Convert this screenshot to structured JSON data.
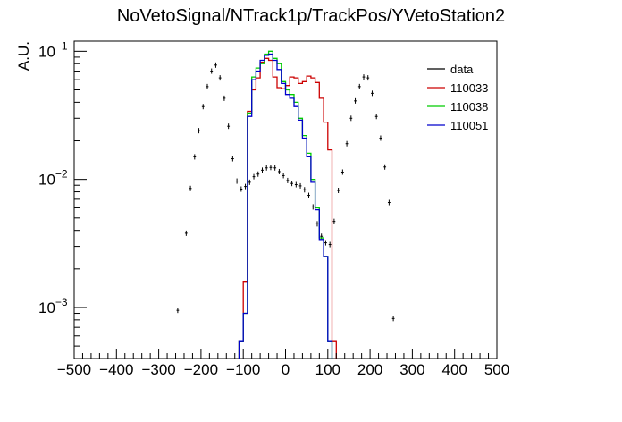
{
  "chart_data": {
    "type": "histogram",
    "title": "NoVetoSignal/NTrack1p/TrackPos/YVetoStation2",
    "ylabel": "A.U.",
    "xlabel": "",
    "xlim": [
      -500,
      500
    ],
    "ylim": [
      0.0004,
      0.12
    ],
    "yscale": "log",
    "grid": false,
    "legend_position": "top-right",
    "x_tick_values": [
      -500,
      -400,
      -300,
      -200,
      -100,
      0,
      100,
      200,
      300,
      400,
      500
    ],
    "x_tick_labels": [
      "−500",
      "−400",
      "−300",
      "−200",
      "−100",
      "0",
      "100",
      "200",
      "300",
      "400",
      "500"
    ],
    "y_tick_labels": [
      {
        "mantissa": "10",
        "exp": "−1",
        "value": 0.1
      },
      {
        "mantissa": "10",
        "exp": "−2",
        "value": 0.01
      },
      {
        "mantissa": "10",
        "exp": "−3",
        "value": 0.001
      }
    ],
    "bin_width": 10,
    "series": [
      {
        "name": "data",
        "style": "points",
        "color": "#000000",
        "x": [
          -255,
          -235,
          -225,
          -215,
          -205,
          -195,
          -185,
          -175,
          -165,
          -155,
          -145,
          -135,
          -125,
          -115,
          -105,
          -95,
          -85,
          -75,
          -65,
          -55,
          -45,
          -35,
          -25,
          -15,
          -5,
          5,
          15,
          25,
          35,
          45,
          55,
          65,
          75,
          85,
          95,
          105,
          115,
          125,
          135,
          145,
          155,
          165,
          175,
          185,
          195,
          205,
          215,
          225,
          235,
          245,
          255
        ],
        "y": [
          0.00095,
          0.0038,
          0.0085,
          0.015,
          0.024,
          0.037,
          0.053,
          0.07,
          0.078,
          0.062,
          0.043,
          0.026,
          0.0145,
          0.0097,
          0.0084,
          0.0088,
          0.0095,
          0.0105,
          0.011,
          0.0118,
          0.0123,
          0.0124,
          0.0123,
          0.0115,
          0.0107,
          0.0098,
          0.0093,
          0.0091,
          0.0089,
          0.0083,
          0.0075,
          0.0061,
          0.0045,
          0.0036,
          0.0032,
          0.0031,
          0.0047,
          0.0082,
          0.0114,
          0.019,
          0.03,
          0.041,
          0.053,
          0.063,
          0.062,
          0.047,
          0.031,
          0.021,
          0.0125,
          0.0066,
          0.00082
        ]
      },
      {
        "name": "110033",
        "style": "step",
        "color": "#cc0000",
        "x_start": -110,
        "x": [
          -105,
          -95,
          -85,
          -75,
          -65,
          -55,
          -45,
          -35,
          -25,
          -15,
          -5,
          5,
          15,
          25,
          35,
          45,
          55,
          65,
          75,
          85,
          95,
          105,
          115
        ],
        "y": [
          0.00055,
          0.0016,
          0.034,
          0.05,
          0.062,
          0.082,
          0.088,
          0.085,
          0.063,
          0.052,
          0.051,
          0.054,
          0.063,
          0.062,
          0.056,
          0.058,
          0.064,
          0.062,
          0.057,
          0.043,
          0.028,
          0.017,
          0.00055
        ]
      },
      {
        "name": "110038",
        "style": "step",
        "color": "#00cc00",
        "x_start": -110,
        "x": [
          -105,
          -95,
          -85,
          -75,
          -65,
          -55,
          -45,
          -35,
          -25,
          -15,
          -5,
          5,
          15,
          25,
          35,
          45,
          55,
          65,
          75,
          85,
          95,
          105
        ],
        "y": [
          0.00055,
          0.0009,
          0.033,
          0.063,
          0.074,
          0.08,
          0.095,
          0.1,
          0.088,
          0.08,
          0.058,
          0.05,
          0.046,
          0.04,
          0.03,
          0.022,
          0.016,
          0.01,
          0.006,
          0.0035,
          0.0025,
          0.00055
        ]
      },
      {
        "name": "110051",
        "style": "step",
        "color": "#0000cc",
        "x_start": -110,
        "x": [
          -105,
          -95,
          -85,
          -75,
          -65,
          -55,
          -45,
          -35,
          -25,
          -15,
          -5,
          5,
          15,
          25,
          35,
          45,
          55,
          65,
          75,
          85,
          95,
          105
        ],
        "y": [
          0.00055,
          0.0009,
          0.031,
          0.06,
          0.07,
          0.085,
          0.093,
          0.095,
          0.085,
          0.072,
          0.056,
          0.046,
          0.043,
          0.037,
          0.029,
          0.021,
          0.015,
          0.0095,
          0.0058,
          0.0034,
          0.0025,
          0.00055
        ]
      }
    ]
  }
}
